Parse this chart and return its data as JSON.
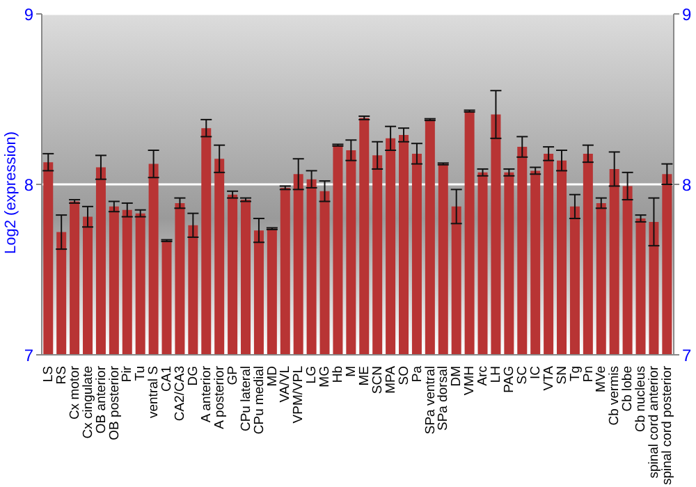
{
  "chart_data": {
    "type": "bar",
    "ylabel": "Log2 (expression)",
    "categories": [
      "LS",
      "RS",
      "Cx motor",
      "Cx cingulate",
      "OB anterior",
      "OB posterior",
      "Pir",
      "Tu",
      "ventral S",
      "CA1",
      "CA2/CA3",
      "DG",
      "A anterior",
      "A posterior",
      "GP",
      "CPu lateral",
      "CPu medial",
      "MD",
      "VA/VL",
      "VPM/VPL",
      "LG",
      "MG",
      "Hb",
      "M",
      "ME",
      "SCN",
      "MPA",
      "SO",
      "Pa",
      "SPa ventral",
      "SPa dorsal",
      "DM",
      "VMH",
      "Arc",
      "LH",
      "PAG",
      "SC",
      "IC",
      "VTA",
      "SN",
      "Tg",
      "Pn",
      "MVe",
      "Cb vermis",
      "Cb lobe",
      "Cb nucleus",
      "spinal cord anterior",
      "spinal cord posterior"
    ],
    "values": [
      8.13,
      7.72,
      7.9,
      7.81,
      8.1,
      7.87,
      7.85,
      7.83,
      8.12,
      7.67,
      7.89,
      7.76,
      8.33,
      8.15,
      7.94,
      7.91,
      7.73,
      7.74,
      7.98,
      8.06,
      8.03,
      7.96,
      8.23,
      8.2,
      8.39,
      8.17,
      8.27,
      8.29,
      8.18,
      8.38,
      8.12,
      7.87,
      8.43,
      8.07,
      8.41,
      8.07,
      8.22,
      8.08,
      8.18,
      8.14,
      7.87,
      8.18,
      7.89,
      8.09,
      7.99,
      7.8,
      7.78,
      8.06
    ],
    "errors": [
      0.05,
      0.1,
      0.01,
      0.06,
      0.07,
      0.03,
      0.04,
      0.02,
      0.08,
      0.005,
      0.03,
      0.07,
      0.05,
      0.08,
      0.02,
      0.01,
      0.07,
      0.005,
      0.01,
      0.09,
      0.05,
      0.06,
      0.005,
      0.06,
      0.01,
      0.08,
      0.07,
      0.04,
      0.06,
      0.005,
      0.005,
      0.1,
      0.005,
      0.02,
      0.14,
      0.02,
      0.06,
      0.02,
      0.04,
      0.06,
      0.07,
      0.05,
      0.03,
      0.1,
      0.08,
      0.02,
      0.14,
      0.06
    ],
    "color": "#b83434",
    "ylim": [
      7,
      9
    ],
    "yticks": [
      7,
      8,
      9
    ],
    "y2lim": [
      7,
      9
    ],
    "y2ticks": [
      7,
      8,
      9
    ],
    "grid": "y"
  }
}
